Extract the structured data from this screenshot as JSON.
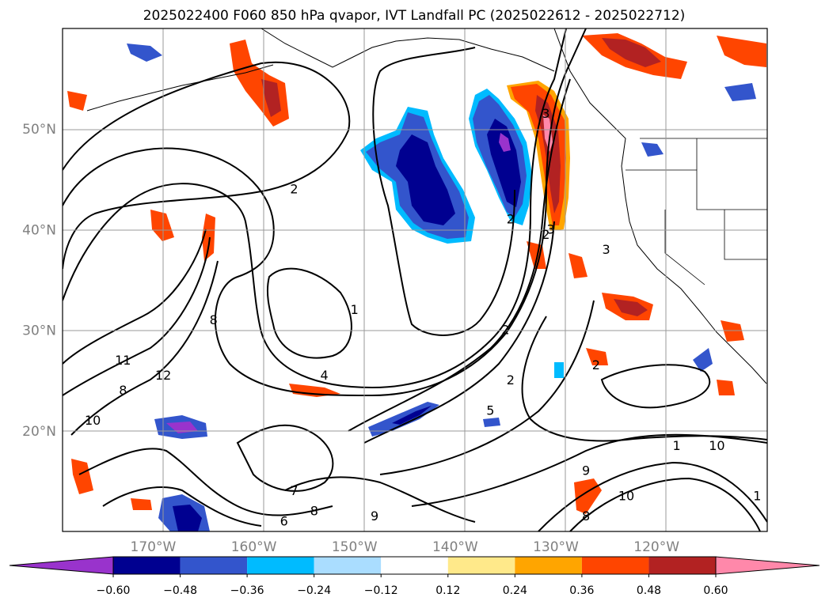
{
  "chart_data": {
    "type": "heatmap",
    "title": "2025022400 F060 850 hPa qvapor, IVT Landfall PC (2025022612 - 2025022712)",
    "x_axis": {
      "tick_labels": [
        "170°W",
        "160°W",
        "150°W",
        "140°W",
        "130°W",
        "120°W"
      ],
      "tick_values": [
        -170,
        -160,
        -150,
        -140,
        -130,
        -120
      ],
      "range": [
        -179,
        -109
      ]
    },
    "y_axis": {
      "tick_labels": [
        "20°N",
        "30°N",
        "40°N",
        "50°N"
      ],
      "tick_values": [
        20,
        30,
        40,
        50
      ],
      "range": [
        10,
        60
      ]
    },
    "grid": true,
    "colorbar": {
      "orientation": "horizontal",
      "location": "bottom",
      "extend": "both",
      "levels": [
        -0.6,
        -0.48,
        -0.36,
        -0.24,
        -0.12,
        0.12,
        0.24,
        0.36,
        0.48,
        0.6
      ],
      "tick_labels": [
        "−0.60",
        "−0.48",
        "−0.36",
        "−0.24",
        "−0.12",
        "0.12",
        "0.24",
        "0.36",
        "0.48",
        "0.60"
      ],
      "colors": [
        "#9933cc",
        "#000090",
        "#3355cc",
        "#00bbff",
        "#aaddff",
        "#ffffff",
        "#ffe98a",
        "#ffa500",
        "#ff4500",
        "#b22222",
        "#ff88aa"
      ]
    },
    "contour_labels": [
      "2",
      "3",
      "1",
      "2",
      "1",
      "2",
      "2",
      "2",
      "2",
      "3",
      "4",
      "5",
      "6",
      "7",
      "8",
      "9",
      "10",
      "11",
      "12",
      "8",
      "9",
      "10",
      "8",
      "10",
      "1",
      "3",
      "8"
    ]
  }
}
